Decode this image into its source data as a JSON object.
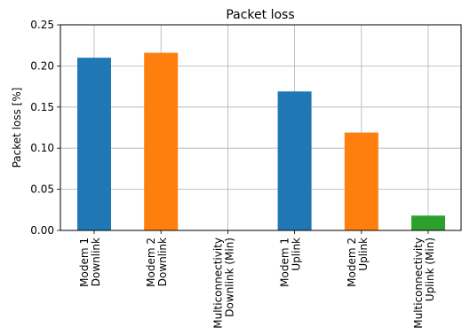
{
  "chart_data": {
    "type": "bar",
    "title": "Packet loss",
    "xlabel": "",
    "ylabel": "Packet loss [%]",
    "ylim": [
      0,
      0.25
    ],
    "yticks": [
      "0.00",
      "0.05",
      "0.10",
      "0.15",
      "0.20",
      "0.25"
    ],
    "grid": true,
    "legend": "none",
    "categories": [
      [
        "Modem 1",
        "Downlink"
      ],
      [
        "Modem 2",
        "Downlink"
      ],
      [
        "Multiconnectivity",
        "Downlink (Min)"
      ],
      [
        "Modem 1",
        "Uplink"
      ],
      [
        "Modem 2",
        "Uplink"
      ],
      [
        "Multiconnectivity",
        "Uplink (Min)"
      ]
    ],
    "values": [
      0.21,
      0.216,
      0.0,
      0.169,
      0.119,
      0.018
    ],
    "colors": [
      "#1f77b4",
      "#ff7f0e",
      "#2ca02c",
      "#1f77b4",
      "#ff7f0e",
      "#2ca02c"
    ]
  }
}
